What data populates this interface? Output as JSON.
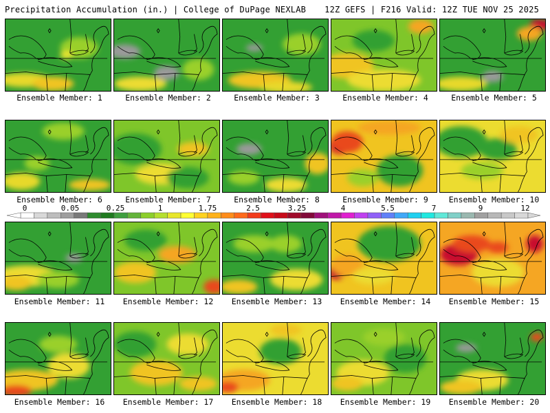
{
  "header": {
    "title_left": "Precipitation Accumulation (in.) | College of DuPage NEXLAB",
    "title_right": "12Z GEFS | F216 Valid: 12Z TUE NOV 25 2025"
  },
  "label_prefix": "Ensemble Member: ",
  "panels": [
    {
      "member": "1",
      "base": "#33a033",
      "blobs": [
        [
          "#e7d92a",
          0.18,
          0.85,
          0.25,
          0.1
        ],
        [
          "#f0c420",
          0.45,
          0.9,
          0.2,
          0.1
        ],
        [
          "#9ad02a",
          0.7,
          0.4,
          0.18,
          0.15
        ],
        [
          "#e9e533",
          0.58,
          0.5,
          0.06,
          0.06
        ]
      ]
    },
    {
      "member": "2",
      "base": "#33a033",
      "blobs": [
        [
          "#9a9a9a",
          0.1,
          0.45,
          0.15,
          0.1
        ],
        [
          "#9a9a9a",
          0.5,
          0.75,
          0.12,
          0.1
        ],
        [
          "#ecdc30",
          0.25,
          0.9,
          0.25,
          0.1
        ],
        [
          "#9ad02a",
          0.8,
          0.7,
          0.15,
          0.15
        ]
      ]
    },
    {
      "member": "3",
      "base": "#33a033",
      "blobs": [
        [
          "#f0c420",
          0.35,
          0.85,
          0.3,
          0.12
        ],
        [
          "#e7d92a",
          0.6,
          0.95,
          0.25,
          0.08
        ],
        [
          "#9ad02a",
          0.75,
          0.35,
          0.18,
          0.15
        ],
        [
          "#9a9a9a",
          0.3,
          0.4,
          0.08,
          0.05
        ]
      ]
    },
    {
      "member": "4",
      "base": "#7fc62a",
      "blobs": [
        [
          "#f0c420",
          0.15,
          0.65,
          0.25,
          0.18
        ],
        [
          "#ecdc30",
          0.5,
          0.85,
          0.35,
          0.15
        ],
        [
          "#f5a623",
          0.85,
          0.1,
          0.12,
          0.1
        ],
        [
          "#33a033",
          0.4,
          0.3,
          0.2,
          0.15
        ]
      ]
    },
    {
      "member": "5",
      "base": "#33a033",
      "blobs": [
        [
          "#c8102e",
          0.95,
          0.08,
          0.1,
          0.08
        ],
        [
          "#f5a623",
          0.85,
          0.2,
          0.12,
          0.1
        ],
        [
          "#9a9a9a",
          0.5,
          0.8,
          0.1,
          0.08
        ],
        [
          "#e7d92a",
          0.2,
          0.9,
          0.25,
          0.1
        ]
      ]
    },
    {
      "member": "6",
      "base": "#33a033",
      "blobs": [
        [
          "#e7d92a",
          0.15,
          0.85,
          0.18,
          0.12
        ],
        [
          "#f0c420",
          0.8,
          0.9,
          0.2,
          0.08
        ],
        [
          "#9ad02a",
          0.55,
          0.15,
          0.2,
          0.12
        ],
        [
          "#9ad02a",
          0.3,
          0.6,
          0.12,
          0.1
        ]
      ]
    },
    {
      "member": "7",
      "base": "#7fc62a",
      "blobs": [
        [
          "#33a033",
          0.2,
          0.4,
          0.25,
          0.22
        ],
        [
          "#ecdc30",
          0.45,
          0.75,
          0.25,
          0.15
        ],
        [
          "#f0c420",
          0.75,
          0.4,
          0.15,
          0.1
        ],
        [
          "#33a033",
          0.7,
          0.8,
          0.2,
          0.15
        ]
      ]
    },
    {
      "member": "8",
      "base": "#33a033",
      "blobs": [
        [
          "#9a9a9a",
          0.25,
          0.4,
          0.12,
          0.08
        ],
        [
          "#f0c420",
          0.9,
          0.6,
          0.12,
          0.15
        ],
        [
          "#ecdc30",
          0.6,
          0.9,
          0.2,
          0.1
        ],
        [
          "#9ad02a",
          0.2,
          0.8,
          0.15,
          0.1
        ]
      ]
    },
    {
      "member": "9",
      "base": "#f0c420",
      "blobs": [
        [
          "#c8102e",
          0.08,
          0.35,
          0.1,
          0.12
        ],
        [
          "#e94a1a",
          0.15,
          0.3,
          0.15,
          0.15
        ],
        [
          "#f5a623",
          0.55,
          0.1,
          0.3,
          0.1
        ],
        [
          "#33a033",
          0.65,
          0.7,
          0.22,
          0.22
        ],
        [
          "#9ad02a",
          0.3,
          0.8,
          0.15,
          0.12
        ]
      ]
    },
    {
      "member": "10",
      "base": "#ecdc30",
      "blobs": [
        [
          "#33a033",
          0.2,
          0.3,
          0.25,
          0.22
        ],
        [
          "#33a033",
          0.55,
          0.4,
          0.18,
          0.15
        ],
        [
          "#f0c420",
          0.75,
          0.2,
          0.18,
          0.12
        ],
        [
          "#9ad02a",
          0.4,
          0.7,
          0.2,
          0.12
        ]
      ]
    },
    {
      "member": "11",
      "base": "#33a033",
      "blobs": [
        [
          "#9a9a9a",
          0.65,
          0.5,
          0.08,
          0.06
        ],
        [
          "#ecdc30",
          0.2,
          0.75,
          0.3,
          0.15
        ],
        [
          "#f0c420",
          0.1,
          0.85,
          0.15,
          0.1
        ],
        [
          "#9ad02a",
          0.5,
          0.8,
          0.2,
          0.12
        ]
      ]
    },
    {
      "member": "12",
      "base": "#7fc62a",
      "blobs": [
        [
          "#f5a623",
          0.6,
          0.45,
          0.18,
          0.12
        ],
        [
          "#e94a1a",
          0.95,
          0.9,
          0.1,
          0.1
        ],
        [
          "#f0c420",
          0.2,
          0.7,
          0.2,
          0.15
        ],
        [
          "#33a033",
          0.3,
          0.25,
          0.2,
          0.15
        ]
      ]
    },
    {
      "member": "13",
      "base": "#33a033",
      "blobs": [
        [
          "#9ad02a",
          0.3,
          0.3,
          0.2,
          0.12
        ],
        [
          "#ecdc30",
          0.7,
          0.8,
          0.25,
          0.15
        ],
        [
          "#f0c420",
          0.15,
          0.9,
          0.18,
          0.1
        ],
        [
          "#9ad02a",
          0.6,
          0.3,
          0.15,
          0.12
        ]
      ]
    },
    {
      "member": "14",
      "base": "#f0c420",
      "blobs": [
        [
          "#33a033",
          0.55,
          0.3,
          0.3,
          0.25
        ],
        [
          "#c8102e",
          0.05,
          0.7,
          0.08,
          0.1
        ],
        [
          "#f5a623",
          0.15,
          0.6,
          0.15,
          0.15
        ],
        [
          "#ecdc30",
          0.4,
          0.75,
          0.2,
          0.12
        ]
      ]
    },
    {
      "member": "15",
      "base": "#f5a623",
      "blobs": [
        [
          "#c8102e",
          0.18,
          0.45,
          0.18,
          0.15
        ],
        [
          "#e94a1a",
          0.3,
          0.3,
          0.18,
          0.12
        ],
        [
          "#ecdc30",
          0.55,
          0.7,
          0.25,
          0.2
        ],
        [
          "#c8102e",
          0.9,
          0.3,
          0.08,
          0.12
        ],
        [
          "#e94a1a",
          0.55,
          0.35,
          0.1,
          0.08
        ]
      ]
    },
    {
      "member": "16",
      "base": "#33a033",
      "blobs": [
        [
          "#f0c420",
          0.2,
          0.8,
          0.3,
          0.15
        ],
        [
          "#e94a1a",
          0.1,
          0.95,
          0.15,
          0.08
        ],
        [
          "#ecdc30",
          0.6,
          0.6,
          0.2,
          0.18
        ],
        [
          "#9ad02a",
          0.5,
          0.3,
          0.18,
          0.12
        ]
      ]
    },
    {
      "member": "17",
      "base": "#7fc62a",
      "blobs": [
        [
          "#f0c420",
          0.4,
          0.7,
          0.25,
          0.18
        ],
        [
          "#ecdc30",
          0.7,
          0.3,
          0.2,
          0.15
        ],
        [
          "#33a033",
          0.2,
          0.3,
          0.2,
          0.18
        ],
        [
          "#f0c420",
          0.8,
          0.85,
          0.18,
          0.1
        ]
      ]
    },
    {
      "member": "18",
      "base": "#ecdc30",
      "blobs": [
        [
          "#f5a623",
          0.2,
          0.8,
          0.25,
          0.15
        ],
        [
          "#e94a1a",
          0.05,
          0.9,
          0.1,
          0.08
        ],
        [
          "#33a033",
          0.55,
          0.4,
          0.2,
          0.18
        ],
        [
          "#f0c420",
          0.6,
          0.1,
          0.15,
          0.08
        ]
      ]
    },
    {
      "member": "19",
      "base": "#7fc62a",
      "blobs": [
        [
          "#ecdc30",
          0.3,
          0.7,
          0.25,
          0.18
        ],
        [
          "#33a033",
          0.7,
          0.5,
          0.2,
          0.2
        ],
        [
          "#f0c420",
          0.15,
          0.85,
          0.15,
          0.1
        ],
        [
          "#9ad02a",
          0.5,
          0.2,
          0.2,
          0.12
        ]
      ]
    },
    {
      "member": "20",
      "base": "#33a033",
      "blobs": [
        [
          "#9a9a9a",
          0.25,
          0.35,
          0.1,
          0.06
        ],
        [
          "#ecdc30",
          0.4,
          0.8,
          0.25,
          0.15
        ],
        [
          "#f0c420",
          0.2,
          0.9,
          0.2,
          0.1
        ],
        [
          "#e94a1a",
          0.92,
          0.2,
          0.06,
          0.06
        ]
      ]
    }
  ],
  "legend": {
    "labels": [
      "0",
      "0.05",
      "0.25",
      "1",
      "1.75",
      "2.5",
      "3.25",
      "4",
      "5.5",
      "7",
      "9",
      "12"
    ],
    "colors": [
      "#ffffff",
      "#d8d8d8",
      "#bdbdbd",
      "#9e9e9e",
      "#7a7a7a",
      "#2e8b2e",
      "#1f7a1f",
      "#3f9f3f",
      "#64b43a",
      "#8ccf2a",
      "#b5df2e",
      "#e7e62a",
      "#ffff33",
      "#ffd21f",
      "#ffb21a",
      "#ff8c1a",
      "#ff6a1a",
      "#f23b1a",
      "#e0101a",
      "#c80a1a",
      "#a00a2a",
      "#820a3a",
      "#a0107a",
      "#c018a8",
      "#e020d0",
      "#c040f0",
      "#9060f8",
      "#6080f8",
      "#40a8f8",
      "#20d0f0",
      "#20e8e0",
      "#60e8d8",
      "#80d0c8",
      "#9ab8b0",
      "#a0a0a0",
      "#b8b8b8",
      "#c8c8c8",
      "#d8d8d8"
    ]
  }
}
